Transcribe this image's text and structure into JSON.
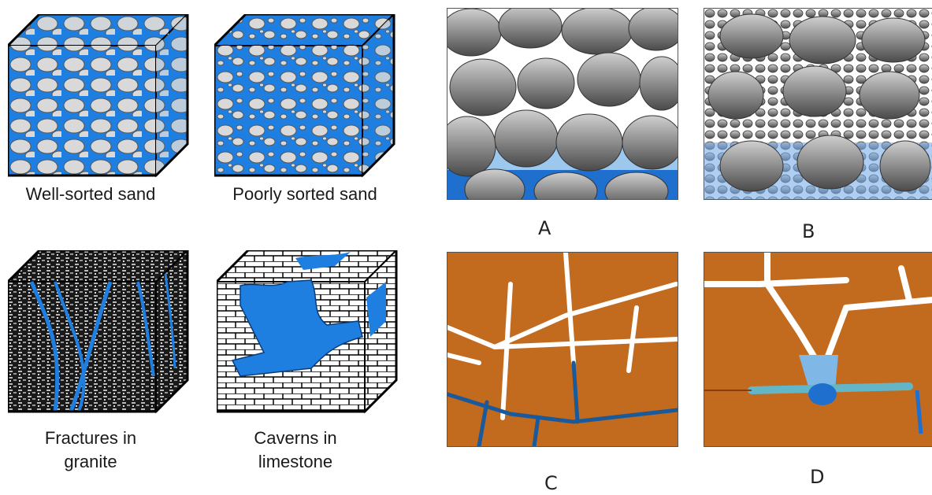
{
  "cubes": [
    {
      "caption": "Well-sorted sand",
      "fill": "#1f7fe0"
    },
    {
      "caption": "Poorly sorted sand",
      "fill": "#1f7fe0"
    },
    {
      "caption_line1": "Fractures in",
      "caption_line2": "granite",
      "fill": "#111111"
    },
    {
      "caption_line1": "Caverns in",
      "caption_line2": "limestone",
      "fill": "#1f7fe0"
    }
  ],
  "panels": [
    {
      "label": "A"
    },
    {
      "label": "B"
    },
    {
      "label": "C"
    },
    {
      "label": "D"
    }
  ],
  "colors": {
    "water": "#1f7fe0",
    "grain": "#cfcfcf",
    "rock": "#c26a1e",
    "pebble": "#8a8a8a"
  }
}
